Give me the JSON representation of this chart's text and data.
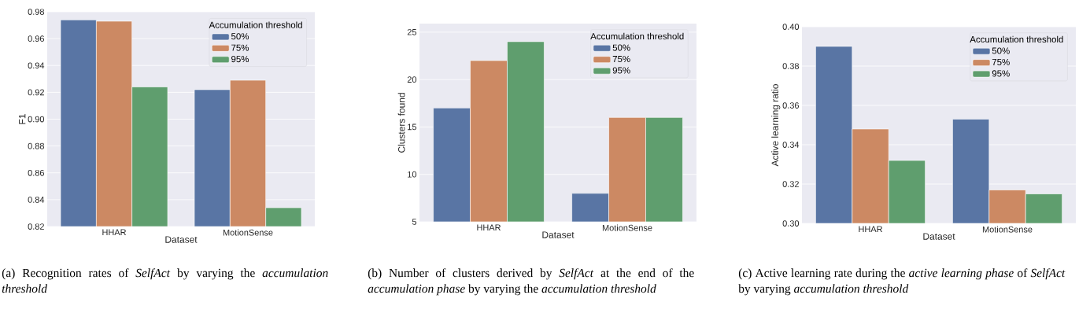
{
  "chart_data": [
    {
      "type": "bar",
      "categories": [
        "HHAR",
        "MotionSense"
      ],
      "xlabel": "Dataset",
      "ylabel": "F1",
      "legend_title": "Accumulation threshold",
      "legend": "top right",
      "grid": "y",
      "series": [
        {
          "name": "50%",
          "color": "#5975a4",
          "values": [
            0.974,
            0.922
          ]
        },
        {
          "name": "75%",
          "color": "#cc8963",
          "values": [
            0.973,
            0.929
          ]
        },
        {
          "name": "95%",
          "color": "#5f9e6e",
          "values": [
            0.924,
            0.834
          ]
        }
      ],
      "ylim": [
        0.82,
        0.98
      ],
      "yticks": [
        0.82,
        0.84,
        0.86,
        0.88,
        {
          "value": 0.9,
          "label": "0.90"
        },
        0.92,
        0.94,
        0.96,
        0.98
      ],
      "annotations": [
        "(a) Recognition rates of *SelfAct* by varying the *accumulation threshold*"
      ]
    },
    {
      "type": "bar",
      "categories": [
        "HHAR",
        "MotionSense"
      ],
      "xlabel": "Dataset",
      "ylabel": "Clusters found",
      "legend_title": "Accumulation threshold",
      "legend": "top right",
      "grid": "y",
      "series": [
        {
          "name": "50%",
          "color": "#5975a4",
          "values": [
            17,
            8
          ]
        },
        {
          "name": "75%",
          "color": "#cc8963",
          "values": [
            22,
            16
          ]
        },
        {
          "name": "95%",
          "color": "#5f9e6e",
          "values": [
            24,
            16
          ]
        }
      ],
      "ylim": [
        5,
        25.9
      ],
      "yticks": [
        5,
        10,
        15,
        20,
        25
      ],
      "annotations": [
        "(b) Number of clusters derived by *SelfAct* at the end of the *accumulation phase* by varying the *accumulation threshold*"
      ]
    },
    {
      "type": "bar",
      "categories": [
        "HHAR",
        "MotionSense"
      ],
      "xlabel": "Dataset",
      "ylabel": "Active learning ratio",
      "legend_title": "Accumulation threshold",
      "legend": "top right",
      "grid": "y",
      "series": [
        {
          "name": "50%",
          "color": "#5975a4",
          "values": [
            0.39,
            0.353
          ]
        },
        {
          "name": "75%",
          "color": "#cc8963",
          "values": [
            0.348,
            0.317
          ]
        },
        {
          "name": "95%",
          "color": "#5f9e6e",
          "values": [
            0.332,
            0.315
          ]
        }
      ],
      "ylim": [
        0.3,
        0.4
      ],
      "yticks": [
        {
          "value": 0.3,
          "label": "0.30"
        },
        0.32,
        0.34,
        0.36,
        0.38,
        {
          "value": 0.4,
          "label": "0.40"
        }
      ],
      "annotations": [
        "(c) Active learning rate during the *active learning phase* of *SelfAct* by varying *accumulation threshold*"
      ]
    }
  ]
}
